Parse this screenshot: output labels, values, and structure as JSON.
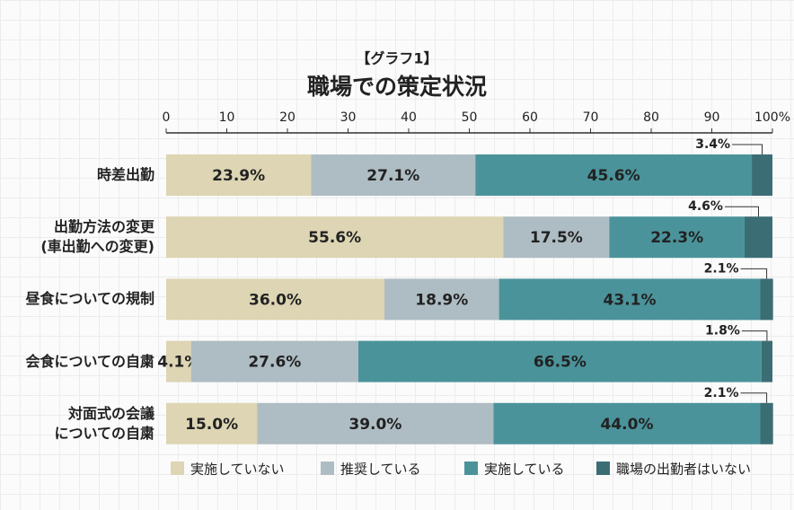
{
  "chart_data": {
    "type": "stacked-bar-horizontal",
    "subtitle": "【グラフ1】",
    "title": "職場での策定状況",
    "categories": [
      "時差出勤",
      "出勤方法の変更\n(車出勤への変更)",
      "昼食についての規制",
      "会食についての自粛",
      "対面式の会議\nについての自粛"
    ],
    "series": [
      {
        "name": "実施していない",
        "color": "#ddd5b3",
        "values": [
          23.9,
          55.6,
          36.0,
          4.1,
          15.0
        ],
        "value_labels": [
          "23.9%",
          "55.6%",
          "36.0%",
          "4.1%",
          "15.0%"
        ]
      },
      {
        "name": "推奨している",
        "color": "#aebdc3",
        "values": [
          27.1,
          17.5,
          18.9,
          27.6,
          39.0
        ],
        "value_labels": [
          "27.1%",
          "17.5%",
          "18.9%",
          "27.6%",
          "39.0%"
        ]
      },
      {
        "name": "実施している",
        "color": "#4b939b",
        "values": [
          45.6,
          22.3,
          43.1,
          66.5,
          44.0
        ],
        "value_labels": [
          "45.6%",
          "22.3%",
          "43.1%",
          "66.5%",
          "44.0%"
        ]
      },
      {
        "name": "職場の出勤者はいない",
        "color": "#3b6e74",
        "values": [
          3.4,
          4.6,
          2.1,
          1.8,
          2.1
        ],
        "value_labels": [
          "3.4%",
          "4.6%",
          "2.1%",
          "1.8%",
          "2.1%"
        ]
      }
    ],
    "xlim": [
      0,
      100
    ],
    "xticks": [
      0,
      10,
      20,
      30,
      40,
      50,
      60,
      70,
      80,
      90,
      {
        "value": 100,
        "label": "100%"
      }
    ]
  }
}
